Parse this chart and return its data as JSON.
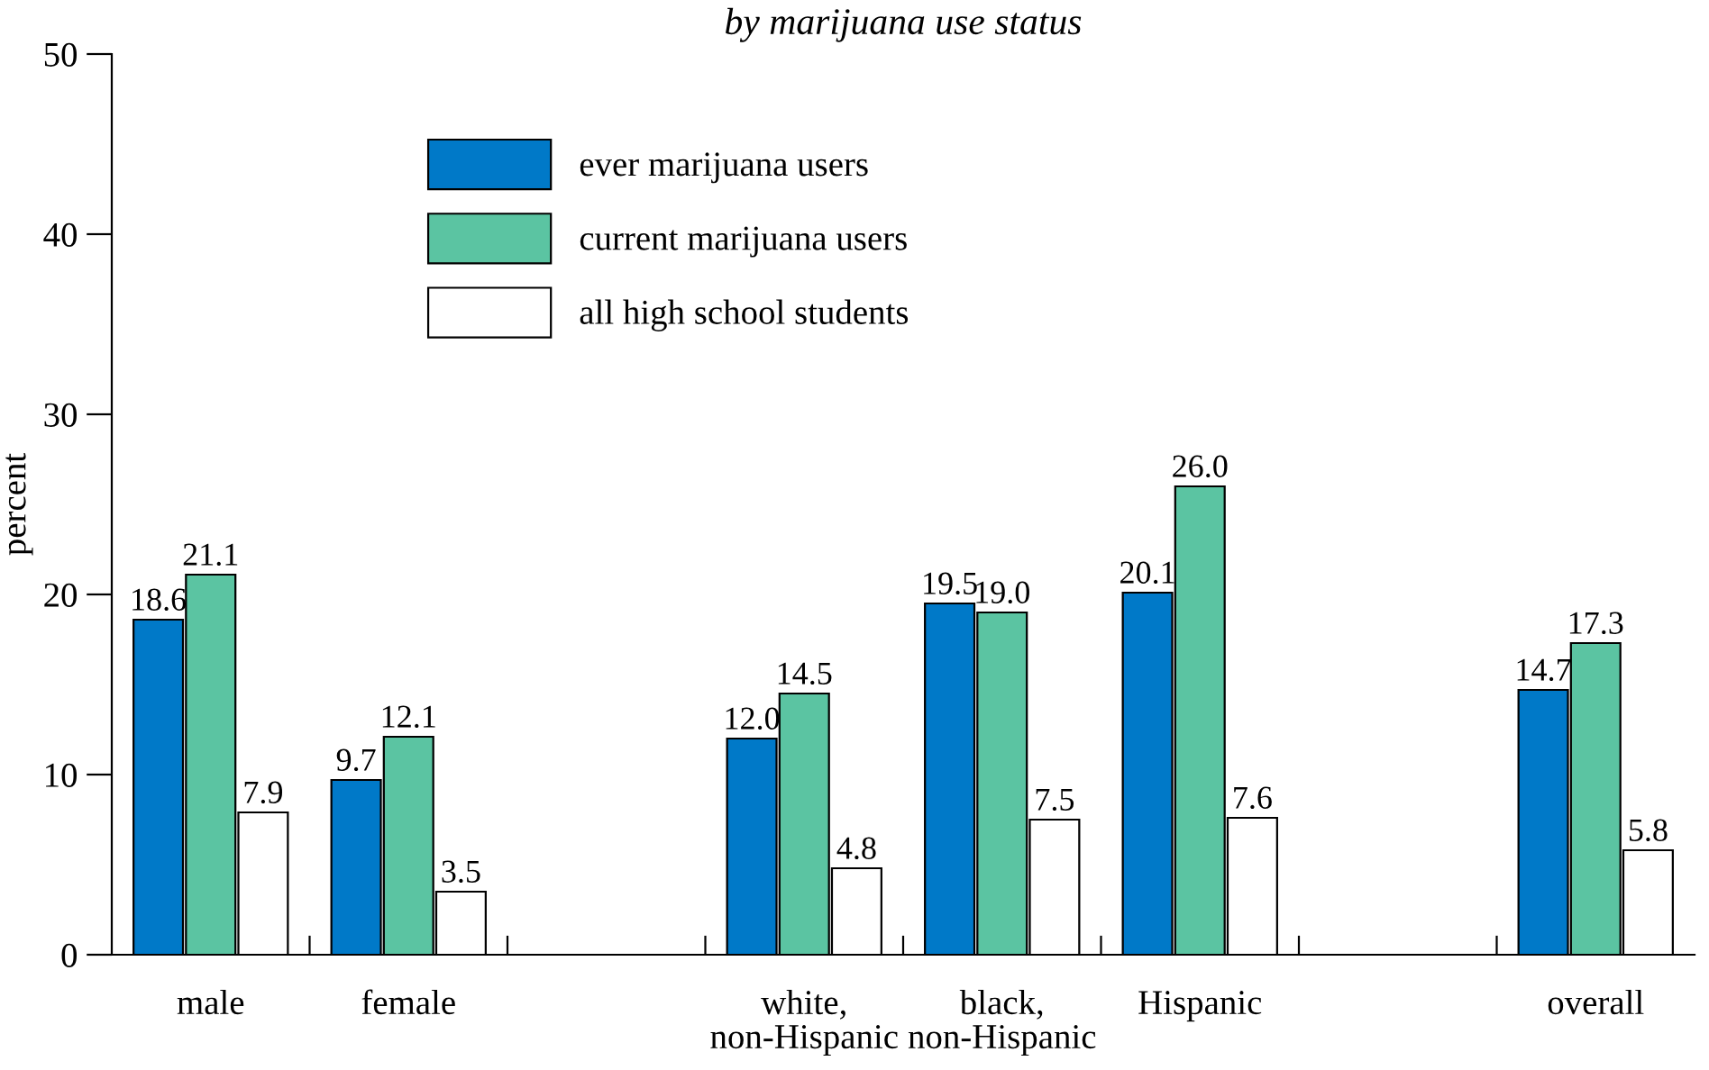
{
  "chart_data": {
    "type": "bar",
    "title": "by marijuana use status",
    "ylabel": "percent",
    "categories": [
      "male",
      "female",
      null,
      "white,\nnon-Hispanic",
      "black,\nnon-Hispanic",
      "Hispanic",
      null,
      "overall"
    ],
    "series": [
      {
        "name": "ever marijuana users",
        "color": "#0079c8",
        "values": [
          18.6,
          9.7,
          null,
          12.0,
          19.5,
          20.1,
          null,
          14.7
        ],
        "value_labels": [
          "18.6",
          "9.7",
          null,
          "12.0",
          "19.5",
          "20.1",
          null,
          "14.7"
        ]
      },
      {
        "name": "current marijuana users",
        "color": "#5bc4a2",
        "values": [
          21.1,
          12.1,
          null,
          14.5,
          19.0,
          26.0,
          null,
          17.3
        ],
        "value_labels": [
          "21.1",
          "12.1",
          null,
          "14.5",
          "19.0",
          "26.0",
          null,
          "17.3"
        ]
      },
      {
        "name": "all high school students",
        "color": "#ffffff",
        "values": [
          7.9,
          3.5,
          null,
          4.8,
          7.5,
          7.6,
          null,
          5.8
        ],
        "value_labels": [
          "7.9",
          "3.5",
          null,
          "4.8",
          "7.5",
          "7.6",
          null,
          "5.8"
        ]
      }
    ],
    "ylim": [
      0,
      50
    ],
    "yticks": [
      0,
      10,
      20,
      30,
      40,
      50
    ],
    "legend": "top left",
    "grid": false
  }
}
